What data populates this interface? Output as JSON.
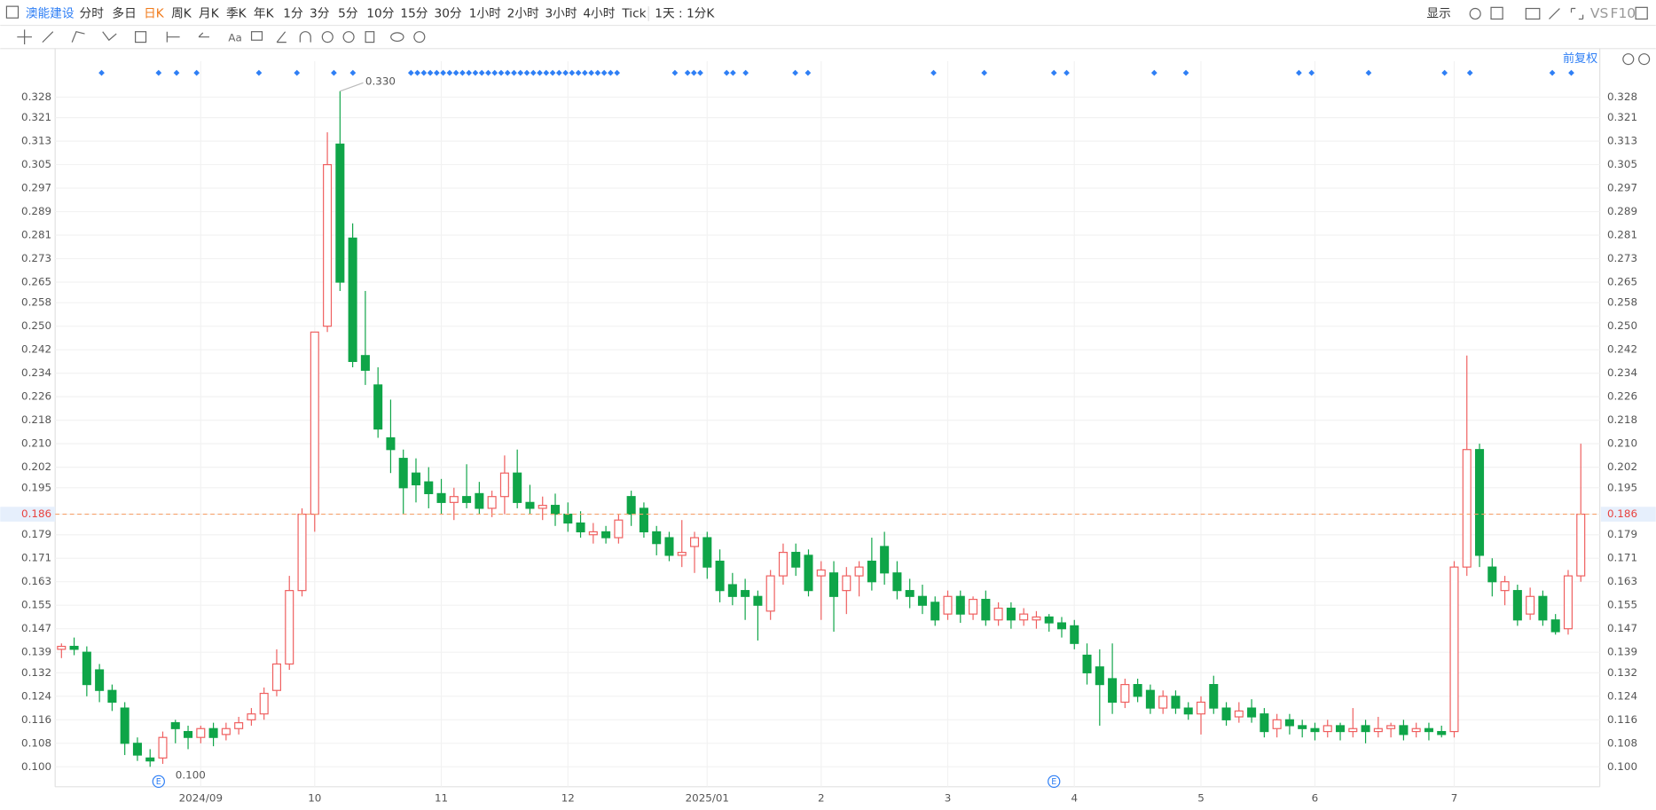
{
  "toolbar": {
    "stock": "澳能建设",
    "periods": [
      "分时",
      "多日",
      "日K",
      "周K",
      "月K",
      "季K",
      "年K",
      "1分",
      "3分",
      "5分",
      "10分",
      "15分",
      "30分",
      "1小时",
      "2小时",
      "3小时",
      "4小时",
      "Tick"
    ],
    "interval": "1天 : 1分K",
    "display": "显示",
    "vs": "VS",
    "f10": "F10",
    "adjust": "前复权"
  },
  "markers": {
    "earnings": "E"
  },
  "chart_data": {
    "type": "candlestick",
    "up_color": "#ef5f5f",
    "down_color": "#0fa548",
    "grid": true,
    "categories": [
      null,
      null,
      null,
      null,
      null,
      null,
      null,
      null,
      null,
      null,
      null,
      "2024/09",
      null,
      null,
      null,
      null,
      null,
      null,
      null,
      null,
      "10",
      null,
      null,
      null,
      null,
      null,
      null,
      null,
      null,
      null,
      "11",
      null,
      null,
      null,
      null,
      null,
      null,
      null,
      null,
      null,
      "12",
      null,
      null,
      null,
      null,
      null,
      null,
      null,
      null,
      null,
      null,
      "2025/01",
      null,
      null,
      null,
      null,
      null,
      null,
      null,
      null,
      "2",
      null,
      null,
      null,
      null,
      null,
      null,
      null,
      null,
      null,
      "3",
      null,
      null,
      null,
      null,
      null,
      null,
      null,
      null,
      null,
      "4",
      null,
      null,
      null,
      null,
      null,
      null,
      null,
      null,
      null,
      "5",
      null,
      null,
      null,
      null,
      null,
      null,
      null,
      null,
      "6",
      null,
      null,
      null,
      null,
      null,
      null,
      null,
      null,
      null,
      null,
      "7",
      null,
      null,
      null,
      null,
      null,
      null,
      null,
      null,
      null,
      null
    ],
    "ohlc": [
      [
        0.14,
        0.142,
        0.137,
        0.141
      ],
      [
        0.141,
        0.144,
        0.138,
        0.14
      ],
      [
        0.139,
        0.141,
        0.124,
        0.128
      ],
      [
        0.133,
        0.135,
        0.122,
        0.126
      ],
      [
        0.126,
        0.128,
        0.119,
        0.122
      ],
      [
        0.12,
        0.122,
        0.104,
        0.108
      ],
      [
        0.108,
        0.11,
        0.102,
        0.104
      ],
      [
        0.103,
        0.106,
        0.1,
        0.102
      ],
      [
        0.103,
        0.112,
        0.101,
        0.11
      ],
      [
        0.115,
        0.116,
        0.108,
        0.113
      ],
      [
        0.112,
        0.114,
        0.106,
        0.11
      ],
      [
        0.11,
        0.114,
        0.108,
        0.113
      ],
      [
        0.113,
        0.115,
        0.107,
        0.11
      ],
      [
        0.111,
        0.115,
        0.109,
        0.113
      ],
      [
        0.113,
        0.117,
        0.111,
        0.115
      ],
      [
        0.116,
        0.12,
        0.114,
        0.118
      ],
      [
        0.118,
        0.127,
        0.116,
        0.125
      ],
      [
        0.126,
        0.14,
        0.124,
        0.135
      ],
      [
        0.135,
        0.165,
        0.133,
        0.16
      ],
      [
        0.16,
        0.188,
        0.158,
        0.186
      ],
      [
        0.186,
        0.248,
        0.18,
        0.248
      ],
      [
        0.25,
        0.316,
        0.248,
        0.305
      ],
      [
        0.312,
        0.33,
        0.262,
        0.265
      ],
      [
        0.28,
        0.285,
        0.236,
        0.238
      ],
      [
        0.24,
        0.262,
        0.23,
        0.235
      ],
      [
        0.23,
        0.236,
        0.212,
        0.215
      ],
      [
        0.212,
        0.225,
        0.2,
        0.208
      ],
      [
        0.205,
        0.208,
        0.186,
        0.195
      ],
      [
        0.2,
        0.205,
        0.19,
        0.196
      ],
      [
        0.197,
        0.202,
        0.188,
        0.193
      ],
      [
        0.193,
        0.198,
        0.186,
        0.19
      ],
      [
        0.19,
        0.195,
        0.184,
        0.192
      ],
      [
        0.192,
        0.203,
        0.188,
        0.19
      ],
      [
        0.193,
        0.197,
        0.186,
        0.188
      ],
      [
        0.188,
        0.194,
        0.185,
        0.192
      ],
      [
        0.192,
        0.206,
        0.186,
        0.2
      ],
      [
        0.2,
        0.208,
        0.188,
        0.19
      ],
      [
        0.19,
        0.196,
        0.186,
        0.188
      ],
      [
        0.188,
        0.192,
        0.184,
        0.189
      ],
      [
        0.189,
        0.193,
        0.182,
        0.186
      ],
      [
        0.186,
        0.19,
        0.18,
        0.183
      ],
      [
        0.183,
        0.187,
        0.178,
        0.18
      ],
      [
        0.179,
        0.183,
        0.176,
        0.18
      ],
      [
        0.18,
        0.182,
        0.176,
        0.178
      ],
      [
        0.178,
        0.186,
        0.176,
        0.184
      ],
      [
        0.192,
        0.194,
        0.182,
        0.186
      ],
      [
        0.188,
        0.19,
        0.178,
        0.18
      ],
      [
        0.18,
        0.182,
        0.172,
        0.176
      ],
      [
        0.178,
        0.18,
        0.17,
        0.172
      ],
      [
        0.172,
        0.184,
        0.168,
        0.173
      ],
      [
        0.175,
        0.18,
        0.166,
        0.178
      ],
      [
        0.178,
        0.18,
        0.164,
        0.168
      ],
      [
        0.17,
        0.174,
        0.156,
        0.16
      ],
      [
        0.162,
        0.166,
        0.155,
        0.158
      ],
      [
        0.16,
        0.164,
        0.15,
        0.158
      ],
      [
        0.158,
        0.16,
        0.143,
        0.155
      ],
      [
        0.153,
        0.167,
        0.15,
        0.165
      ],
      [
        0.165,
        0.176,
        0.162,
        0.173
      ],
      [
        0.173,
        0.176,
        0.165,
        0.168
      ],
      [
        0.172,
        0.174,
        0.158,
        0.16
      ],
      [
        0.165,
        0.17,
        0.15,
        0.167
      ],
      [
        0.166,
        0.17,
        0.146,
        0.158
      ],
      [
        0.16,
        0.168,
        0.152,
        0.165
      ],
      [
        0.165,
        0.17,
        0.158,
        0.168
      ],
      [
        0.17,
        0.178,
        0.16,
        0.163
      ],
      [
        0.175,
        0.18,
        0.162,
        0.166
      ],
      [
        0.166,
        0.17,
        0.157,
        0.16
      ],
      [
        0.16,
        0.164,
        0.154,
        0.158
      ],
      [
        0.158,
        0.162,
        0.152,
        0.155
      ],
      [
        0.156,
        0.158,
        0.148,
        0.15
      ],
      [
        0.152,
        0.16,
        0.15,
        0.158
      ],
      [
        0.158,
        0.16,
        0.149,
        0.152
      ],
      [
        0.152,
        0.158,
        0.15,
        0.157
      ],
      [
        0.157,
        0.16,
        0.148,
        0.15
      ],
      [
        0.15,
        0.156,
        0.148,
        0.154
      ],
      [
        0.154,
        0.156,
        0.147,
        0.15
      ],
      [
        0.15,
        0.154,
        0.148,
        0.152
      ],
      [
        0.15,
        0.153,
        0.147,
        0.151
      ],
      [
        0.151,
        0.152,
        0.146,
        0.149
      ],
      [
        0.149,
        0.151,
        0.144,
        0.147
      ],
      [
        0.148,
        0.15,
        0.14,
        0.142
      ],
      [
        0.138,
        0.142,
        0.128,
        0.132
      ],
      [
        0.134,
        0.14,
        0.114,
        0.128
      ],
      [
        0.13,
        0.142,
        0.118,
        0.122
      ],
      [
        0.122,
        0.13,
        0.12,
        0.128
      ],
      [
        0.128,
        0.13,
        0.122,
        0.124
      ],
      [
        0.126,
        0.128,
        0.118,
        0.12
      ],
      [
        0.12,
        0.126,
        0.118,
        0.124
      ],
      [
        0.124,
        0.126,
        0.118,
        0.12
      ],
      [
        0.12,
        0.122,
        0.116,
        0.118
      ],
      [
        0.118,
        0.124,
        0.111,
        0.122
      ],
      [
        0.128,
        0.131,
        0.118,
        0.12
      ],
      [
        0.12,
        0.122,
        0.114,
        0.116
      ],
      [
        0.117,
        0.122,
        0.115,
        0.119
      ],
      [
        0.12,
        0.123,
        0.115,
        0.117
      ],
      [
        0.118,
        0.12,
        0.11,
        0.112
      ],
      [
        0.113,
        0.118,
        0.11,
        0.116
      ],
      [
        0.116,
        0.118,
        0.111,
        0.114
      ],
      [
        0.114,
        0.116,
        0.11,
        0.113
      ],
      [
        0.113,
        0.115,
        0.109,
        0.112
      ],
      [
        0.112,
        0.116,
        0.11,
        0.114
      ],
      [
        0.114,
        0.115,
        0.109,
        0.112
      ],
      [
        0.112,
        0.12,
        0.11,
        0.113
      ],
      [
        0.114,
        0.116,
        0.108,
        0.112
      ],
      [
        0.112,
        0.117,
        0.11,
        0.113
      ],
      [
        0.113,
        0.115,
        0.11,
        0.114
      ],
      [
        0.114,
        0.116,
        0.109,
        0.111
      ],
      [
        0.112,
        0.115,
        0.11,
        0.113
      ],
      [
        0.113,
        0.115,
        0.109,
        0.112
      ],
      [
        0.112,
        0.114,
        0.11,
        0.111
      ],
      [
        0.112,
        0.17,
        0.11,
        0.168
      ],
      [
        0.168,
        0.24,
        0.165,
        0.208
      ],
      [
        0.208,
        0.21,
        0.168,
        0.172
      ],
      [
        0.168,
        0.171,
        0.158,
        0.163
      ],
      [
        0.16,
        0.165,
        0.155,
        0.163
      ],
      [
        0.16,
        0.162,
        0.148,
        0.15
      ],
      [
        0.152,
        0.161,
        0.15,
        0.158
      ],
      [
        0.158,
        0.16,
        0.148,
        0.15
      ],
      [
        0.15,
        0.152,
        0.145,
        0.146
      ],
      [
        0.147,
        0.167,
        0.145,
        0.165
      ],
      [
        0.165,
        0.21,
        0.163,
        0.186
      ]
    ],
    "ylim": [
      0.0932,
      0.3402
    ],
    "yticks": [
      {
        "value": 0.1,
        "label": "0.100"
      },
      0.108,
      0.116,
      0.124,
      0.132,
      0.139,
      0.147,
      0.155,
      0.163,
      0.171,
      0.179,
      0.186,
      0.195,
      0.202,
      {
        "value": 0.21,
        "label": "0.210"
      },
      0.218,
      0.226,
      0.234,
      0.242,
      {
        "value": 0.25,
        "label": "0.250"
      },
      0.258,
      0.265,
      0.273,
      0.281,
      0.289,
      0.297,
      0.305,
      0.313,
      0.321,
      0.328
    ],
    "last_price": 0.186,
    "max_label": "0.330",
    "min_label": "0.100"
  }
}
